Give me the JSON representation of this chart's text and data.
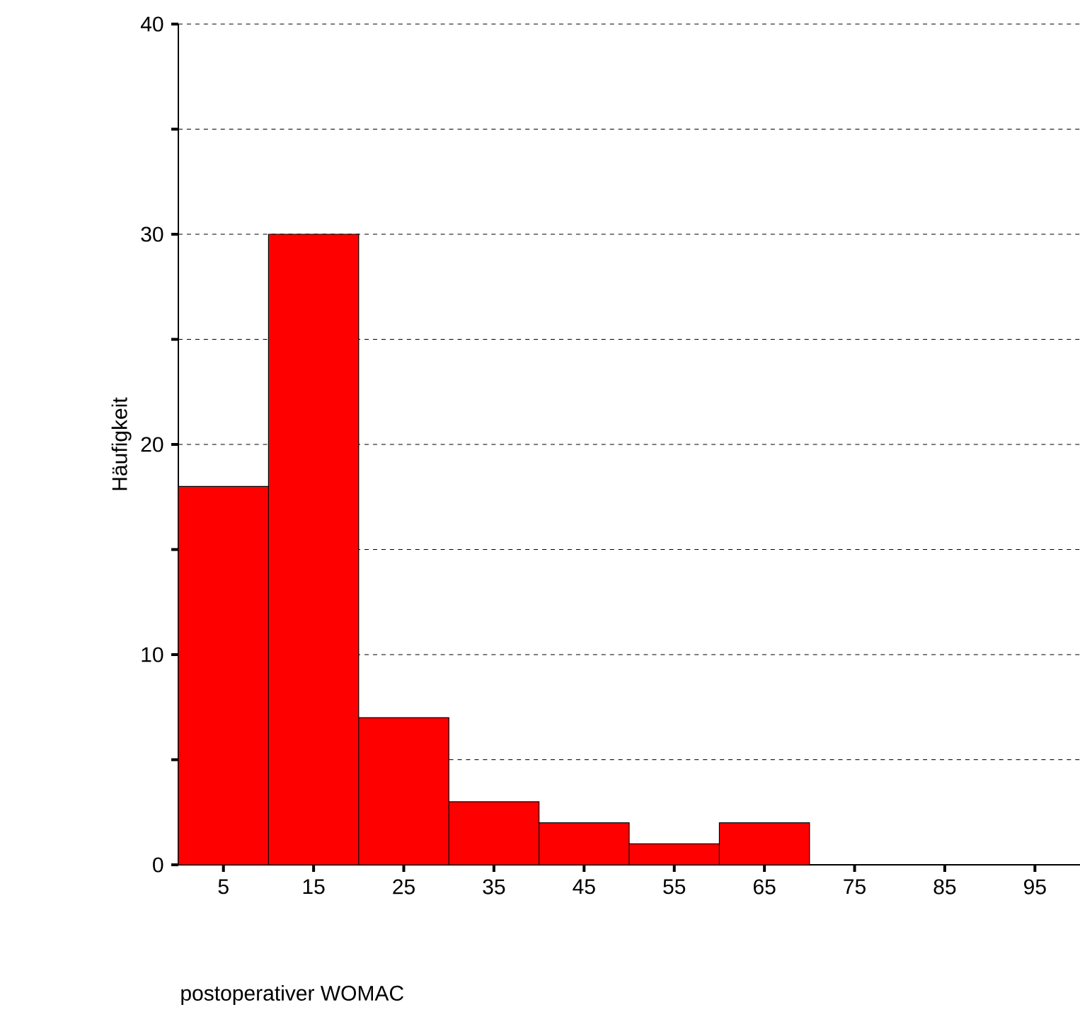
{
  "chart_data": {
    "type": "histogram",
    "xlabel": "postoperativer WOMAC",
    "ylabel": "Häufigkeit",
    "bins": [
      0,
      10,
      20,
      30,
      40,
      50,
      60,
      70,
      80,
      90,
      100
    ],
    "values": [
      18,
      30,
      7,
      3,
      2,
      1,
      2,
      0,
      0,
      0
    ],
    "color": "#ff0000",
    "xlim": [
      0,
      100
    ],
    "xticks": [
      5,
      15,
      25,
      35,
      45,
      55,
      65,
      75,
      85,
      95
    ],
    "ylim": [
      0,
      40
    ],
    "yticks": [
      0,
      {
        "value": 5,
        "label": null
      },
      10,
      {
        "value": 15,
        "label": null
      },
      20,
      {
        "value": 25,
        "label": null
      },
      30,
      {
        "value": 35,
        "label": null
      },
      40
    ],
    "grid": "y"
  }
}
